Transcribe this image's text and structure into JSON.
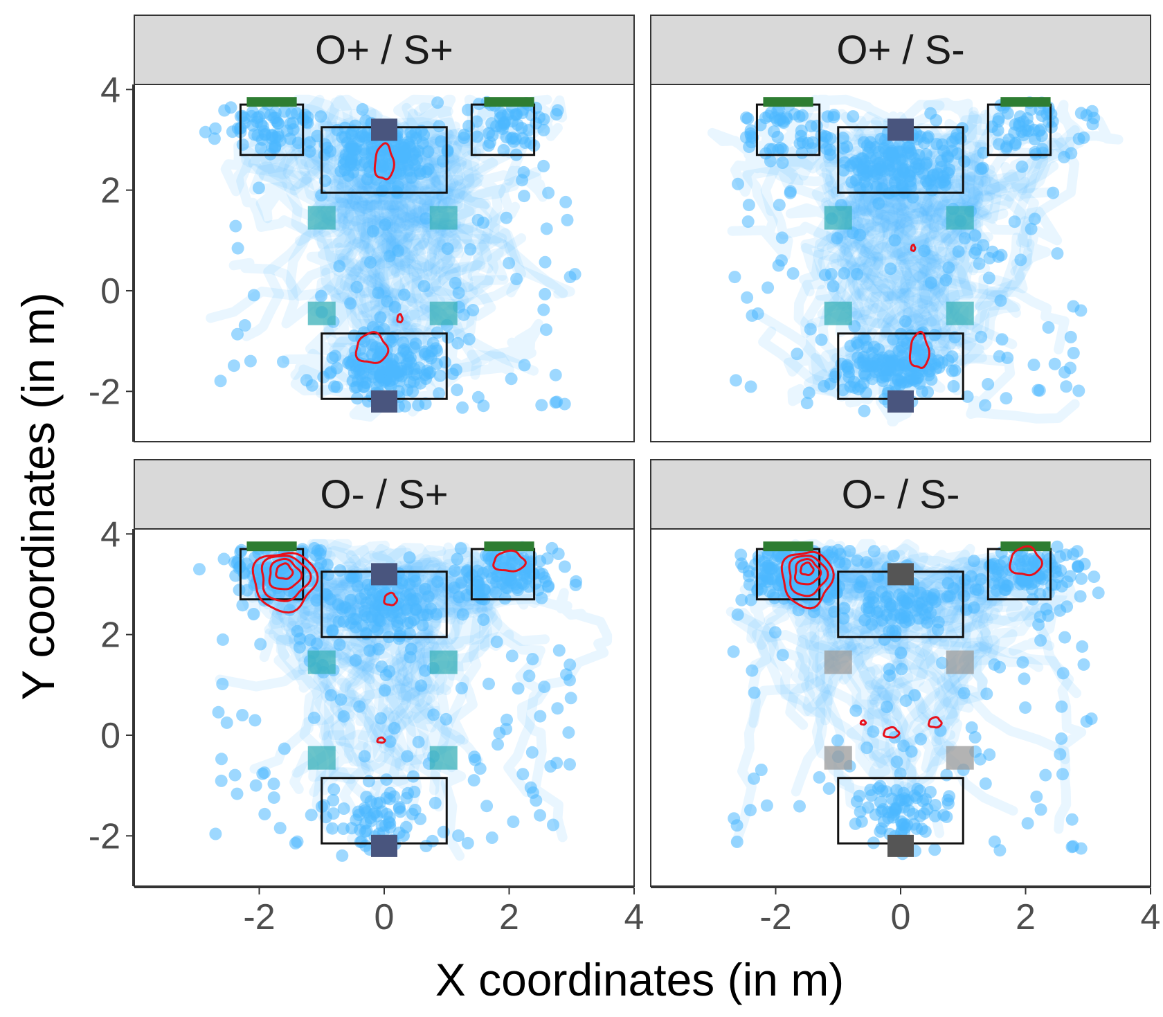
{
  "chart_data": {
    "type": "scatter",
    "title": "",
    "xlabel": "X coordinates (in m)",
    "ylabel": "Y coordinates (in m)",
    "xlim": [
      -4,
      4
    ],
    "ylim": [
      -3,
      4.1
    ],
    "x_ticks": [
      -2,
      0,
      2,
      4
    ],
    "y_ticks": [
      -2,
      0,
      2,
      4
    ],
    "x_tick_labels": [
      "-2",
      "0",
      "2",
      "4"
    ],
    "y_tick_labels": [
      "-2",
      "0",
      "2",
      "4"
    ],
    "grid": false,
    "colors": {
      "trajectory": "#4db8ff",
      "contour": "#e8101a",
      "zone_outline": "#111111",
      "goal_marker": "#2e7d32",
      "post_marker": "#555555",
      "obstacle": "#999999",
      "strip_bg": "#d9d9d9"
    },
    "arena_layout": {
      "zones": [
        {
          "name": "top-left zone",
          "x": [
            -2.3,
            -1.3
          ],
          "y": [
            2.7,
            3.7
          ]
        },
        {
          "name": "top-right zone",
          "x": [
            1.4,
            2.4
          ],
          "y": [
            2.7,
            3.7
          ]
        },
        {
          "name": "top-center zone",
          "x": [
            -1.0,
            1.0
          ],
          "y": [
            1.95,
            3.25
          ]
        },
        {
          "name": "bottom-center zone",
          "x": [
            -1.0,
            1.0
          ],
          "y": [
            -2.15,
            -0.85
          ]
        }
      ],
      "goal_markers": [
        {
          "name": "goal-left",
          "x": [
            -2.2,
            -1.4
          ],
          "y": [
            3.7,
            3.85
          ]
        },
        {
          "name": "goal-right",
          "x": [
            1.6,
            2.4
          ],
          "y": [
            3.7,
            3.85
          ]
        }
      ],
      "posts": [
        {
          "name": "post-top",
          "x": 0,
          "y": 3.2
        },
        {
          "name": "post-bottom",
          "x": 0,
          "y": -2.2
        }
      ],
      "obstacles": [
        {
          "name": "obstacle-ul",
          "x": -1.0,
          "y": 1.45
        },
        {
          "name": "obstacle-ur",
          "x": 0.95,
          "y": 1.45
        },
        {
          "name": "obstacle-ll",
          "x": -1.0,
          "y": -0.45
        },
        {
          "name": "obstacle-lr",
          "x": 0.95,
          "y": -0.45
        }
      ]
    },
    "facets": [
      {
        "label": "O+ / S+",
        "spread": 0.8,
        "obstacles_active": true,
        "post_top_active": true,
        "post_bottom_active": true,
        "hotspots": [
          {
            "x": 0,
            "y": 2.7,
            "weight": 3
          },
          {
            "x": 0,
            "y": -1.5,
            "weight": 3
          },
          {
            "x": -1.8,
            "y": 3.3,
            "weight": 1
          },
          {
            "x": 2.0,
            "y": 3.3,
            "weight": 1
          }
        ],
        "contours": [
          {
            "cx": 0.0,
            "cy": 2.55,
            "levels": [
              [
                0.15,
                0.35
              ]
            ]
          },
          {
            "cx": -0.2,
            "cy": -1.15,
            "levels": [
              [
                0.25,
                0.3
              ]
            ]
          },
          {
            "cx": 0.25,
            "cy": -0.55,
            "levels": [
              [
                0.04,
                0.08
              ]
            ]
          }
        ]
      },
      {
        "label": "O+ / S-",
        "spread": 0.8,
        "obstacles_active": true,
        "post_top_active": true,
        "post_bottom_active": true,
        "hotspots": [
          {
            "x": 0,
            "y": 2.5,
            "weight": 3
          },
          {
            "x": 0,
            "y": -1.5,
            "weight": 3
          },
          {
            "x": -1.8,
            "y": 3.2,
            "weight": 1
          },
          {
            "x": 2.0,
            "y": 3.2,
            "weight": 1
          }
        ],
        "contours": [
          {
            "cx": 0.2,
            "cy": 0.85,
            "levels": [
              [
                0.03,
                0.06
              ]
            ]
          },
          {
            "cx": 0.3,
            "cy": -1.2,
            "levels": [
              [
                0.15,
                0.35
              ]
            ]
          }
        ]
      },
      {
        "label": "O- / S+",
        "spread": 0.55,
        "obstacles_active": true,
        "post_top_active": true,
        "post_bottom_active": true,
        "hotspots": [
          {
            "x": -1.7,
            "y": 3.3,
            "weight": 2
          },
          {
            "x": 2.0,
            "y": 3.3,
            "weight": 2
          },
          {
            "x": 0,
            "y": 2.6,
            "weight": 2
          },
          {
            "x": 0,
            "y": -1.6,
            "weight": 1
          }
        ],
        "contours": [
          {
            "cx": -1.6,
            "cy": 3.25,
            "levels": [
              [
                0.13,
                0.15
              ],
              [
                0.25,
                0.3
              ],
              [
                0.38,
                0.45
              ],
              [
                0.5,
                0.58
              ]
            ]
          },
          {
            "cx": 2.0,
            "cy": 3.45,
            "levels": [
              [
                0.25,
                0.2
              ]
            ]
          },
          {
            "cx": 0.1,
            "cy": 2.7,
            "levels": [
              [
                0.1,
                0.12
              ]
            ]
          },
          {
            "cx": -0.05,
            "cy": -0.1,
            "levels": [
              [
                0.06,
                0.05
              ]
            ]
          }
        ]
      },
      {
        "label": "O- / S-",
        "spread": 0.5,
        "obstacles_active": false,
        "post_top_active": false,
        "post_bottom_active": false,
        "hotspots": [
          {
            "x": -1.6,
            "y": 3.2,
            "weight": 3
          },
          {
            "x": 2.0,
            "y": 3.3,
            "weight": 2
          },
          {
            "x": 0,
            "y": 2.6,
            "weight": 1
          },
          {
            "x": 0,
            "y": -1.5,
            "weight": 1
          }
        ],
        "contours": [
          {
            "cx": -1.5,
            "cy": 3.3,
            "levels": [
              [
                0.1,
                0.12
              ],
              [
                0.2,
                0.25
              ],
              [
                0.3,
                0.4
              ],
              [
                0.4,
                0.55
              ]
            ]
          },
          {
            "cx": 2.0,
            "cy": 3.45,
            "levels": [
              [
                0.25,
                0.28
              ]
            ]
          },
          {
            "cx": -0.15,
            "cy": 0.05,
            "levels": [
              [
                0.12,
                0.1
              ]
            ]
          },
          {
            "cx": 0.55,
            "cy": 0.25,
            "levels": [
              [
                0.1,
                0.1
              ]
            ]
          },
          {
            "cx": -0.6,
            "cy": 0.25,
            "levels": [
              [
                0.04,
                0.04
              ]
            ]
          }
        ]
      }
    ]
  }
}
